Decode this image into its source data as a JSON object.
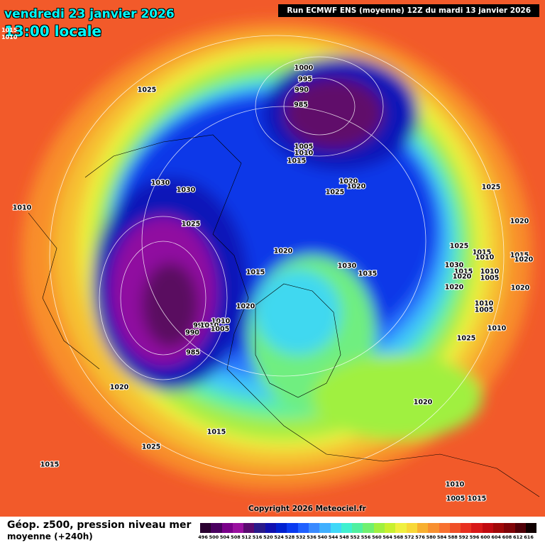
{
  "header": {
    "date": "vendredi 23 janvier 2026",
    "time": "13:00 locale",
    "run": "Run ECMWF ENS (moyenne) 12Z du mardi 13 janvier 2026",
    "corner_labels": [
      "1015",
      "1010"
    ]
  },
  "isobar_labels": [
    "1025",
    "1000",
    "995",
    "990",
    "985",
    "1005",
    "1010",
    "1015",
    "1030",
    "1030",
    "1020",
    "1020",
    "1025",
    "1025",
    "1010",
    "1025",
    "1020",
    "1025",
    "1015",
    "1010",
    "1015",
    "1020",
    "1020",
    "1030",
    "1015",
    "1030",
    "1035",
    "1015",
    "1020",
    "1010",
    "1005",
    "1020",
    "1020",
    "1020",
    "1010",
    "1005",
    "1010",
    "995",
    "1010",
    "1005",
    "990",
    "1010",
    "1025",
    "985",
    "1020",
    "1020",
    "1015",
    "1025",
    "1015",
    "1010",
    "1005",
    "1015"
  ],
  "footer": {
    "title": "Géop. z500, pression niveau mer",
    "subtitle": "moyenne  (+240h)",
    "copyright": "Copyright 2026 Meteociel.fr"
  },
  "scale": {
    "labels": [
      496,
      500,
      504,
      508,
      512,
      516,
      520,
      524,
      528,
      532,
      536,
      540,
      544,
      548,
      552,
      556,
      560,
      564,
      568,
      572,
      576,
      580,
      584,
      588,
      592,
      596,
      600,
      604,
      608,
      612,
      616
    ],
    "colors": [
      "#2a0030",
      "#4a0060",
      "#7a008a",
      "#9a10a0",
      "#5a0a70",
      "#2a1a8a",
      "#1010b0",
      "#0020d0",
      "#0a3af0",
      "#2060ff",
      "#3a8aff",
      "#40b0ff",
      "#40d8f8",
      "#40f0d0",
      "#50f0a0",
      "#70f070",
      "#a0f040",
      "#c8f030",
      "#f0f040",
      "#f8d838",
      "#f8b030",
      "#f89030",
      "#f87030",
      "#f05028",
      "#e83020",
      "#d81818",
      "#c00a10",
      "#a00808",
      "#800408",
      "#500008",
      "#100000"
    ]
  }
}
